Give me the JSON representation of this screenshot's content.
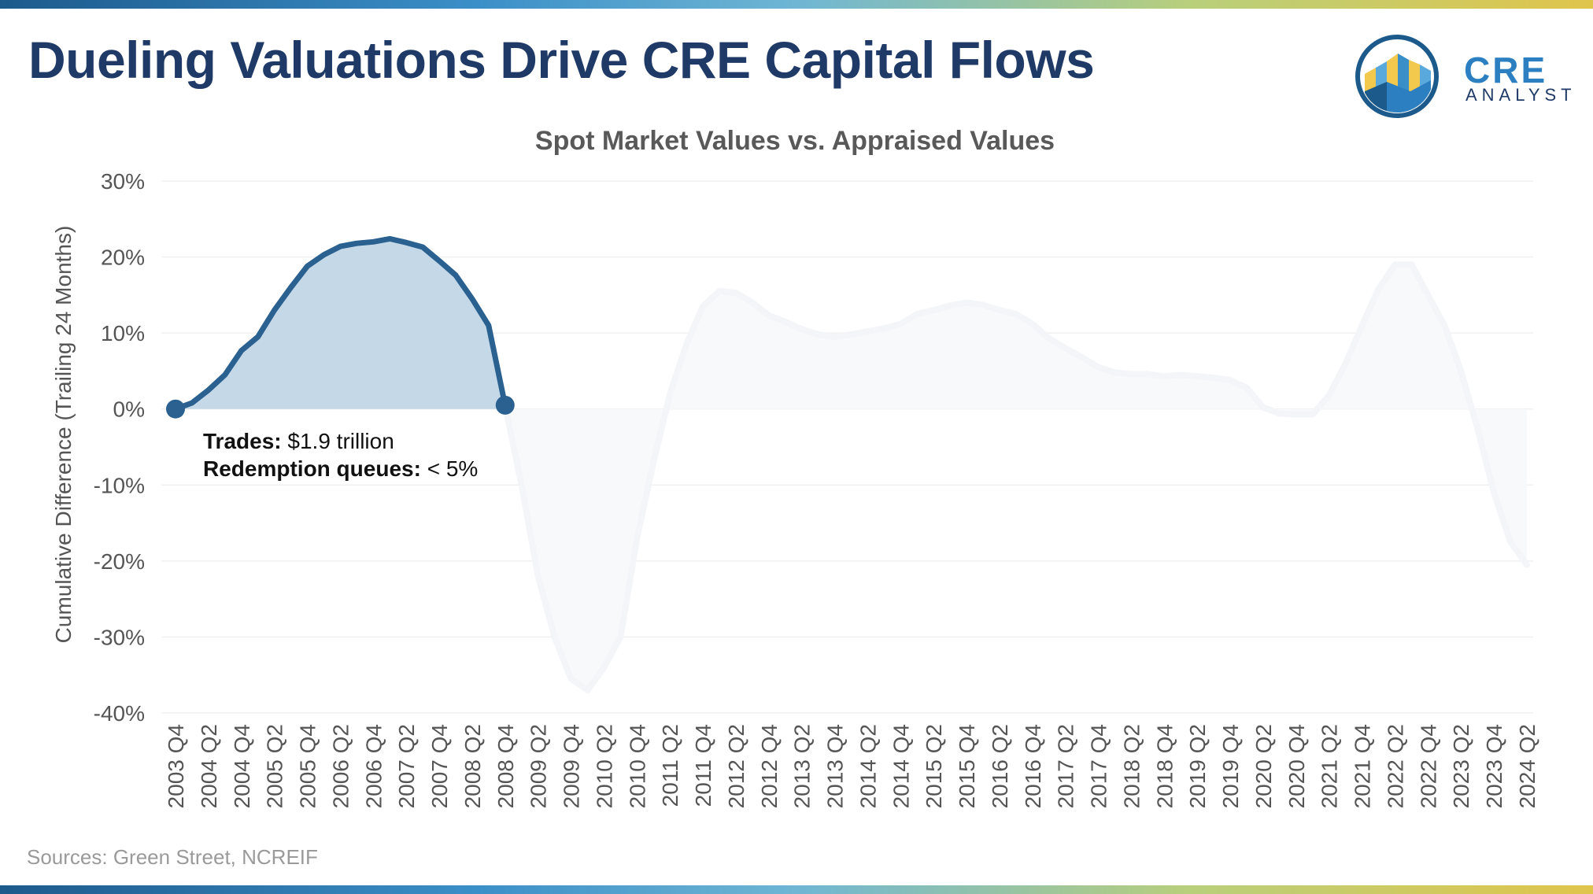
{
  "header": {
    "title": "Dueling Valuations Drive CRE Capital Flows",
    "logo_word": "CRE",
    "logo_sub": "ANALYST"
  },
  "footer": {
    "source": "Sources: Green Street, NCREIF"
  },
  "colors": {
    "title": "#203a68",
    "line_highlight": "#2b6190",
    "fill_highlight": "#c5d8e7",
    "line_faded": "#f3f5f8",
    "fill_faded": "#f7f9fb",
    "grid": "#f0f0f0",
    "axis_text": "#555555"
  },
  "chart_data": {
    "type": "line",
    "title": "Spot Market Values vs. Appraised Values",
    "xlabel": "",
    "ylabel": "Cumulative Difference (Trailing 24 Months)",
    "ylim": [
      -40,
      30
    ],
    "y_ticks": [
      30,
      20,
      10,
      0,
      -10,
      -20,
      -30,
      -40
    ],
    "y_tick_labels": [
      "30%",
      "20%",
      "10%",
      "0%",
      "-10%",
      "-20%",
      "-30%",
      "-40%"
    ],
    "x_tick_labels": [
      "2003 Q4",
      "2004 Q2",
      "2004 Q4",
      "2005 Q2",
      "2005 Q4",
      "2006 Q2",
      "2006 Q4",
      "2007 Q2",
      "2007 Q4",
      "2008 Q2",
      "2008 Q4",
      "2009 Q2",
      "2009 Q4",
      "2010 Q2",
      "2010 Q4",
      "2011 Q2",
      "2011 Q4",
      "2012 Q2",
      "2012 Q4",
      "2013 Q2",
      "2013 Q4",
      "2014 Q2",
      "2014 Q4",
      "2015 Q2",
      "2015 Q4",
      "2016 Q2",
      "2016 Q4",
      "2017 Q2",
      "2017 Q4",
      "2018 Q2",
      "2018 Q4",
      "2019 Q2",
      "2019 Q4",
      "2020 Q2",
      "2020 Q4",
      "2021 Q2",
      "2021 Q4",
      "2022 Q2",
      "2022 Q4",
      "2023 Q2",
      "2023 Q4",
      "2024 Q2"
    ],
    "x": [
      "2003 Q4",
      "2004 Q1",
      "2004 Q2",
      "2004 Q3",
      "2004 Q4",
      "2005 Q1",
      "2005 Q2",
      "2005 Q3",
      "2005 Q4",
      "2006 Q1",
      "2006 Q2",
      "2006 Q3",
      "2006 Q4",
      "2007 Q1",
      "2007 Q2",
      "2007 Q3",
      "2007 Q4",
      "2008 Q1",
      "2008 Q2",
      "2008 Q3",
      "2008 Q4",
      "2009 Q1",
      "2009 Q2",
      "2009 Q3",
      "2009 Q4",
      "2010 Q1",
      "2010 Q2",
      "2010 Q3",
      "2010 Q4",
      "2011 Q1",
      "2011 Q2",
      "2011 Q3",
      "2011 Q4",
      "2012 Q1",
      "2012 Q2",
      "2012 Q3",
      "2012 Q4",
      "2013 Q1",
      "2013 Q2",
      "2013 Q3",
      "2013 Q4",
      "2014 Q1",
      "2014 Q2",
      "2014 Q3",
      "2014 Q4",
      "2015 Q1",
      "2015 Q2",
      "2015 Q3",
      "2015 Q4",
      "2016 Q1",
      "2016 Q2",
      "2016 Q3",
      "2016 Q4",
      "2017 Q1",
      "2017 Q2",
      "2017 Q3",
      "2017 Q4",
      "2018 Q1",
      "2018 Q2",
      "2018 Q3",
      "2018 Q4",
      "2019 Q1",
      "2019 Q2",
      "2019 Q3",
      "2019 Q4",
      "2020 Q1",
      "2020 Q2",
      "2020 Q3",
      "2020 Q4",
      "2021 Q1",
      "2021 Q2",
      "2021 Q3",
      "2021 Q4",
      "2022 Q1",
      "2022 Q2",
      "2022 Q3",
      "2022 Q4",
      "2023 Q1",
      "2023 Q2",
      "2023 Q3",
      "2023 Q4",
      "2024 Q1",
      "2024 Q2"
    ],
    "values": [
      0,
      0.8,
      2.5,
      4.5,
      7.7,
      9.5,
      13.0,
      16.0,
      18.8,
      20.3,
      21.4,
      21.8,
      22.0,
      22.4,
      21.9,
      21.3,
      19.5,
      17.6,
      14.5,
      11.0,
      0.5,
      -10.0,
      -22.0,
      -30.0,
      -35.5,
      -37.0,
      -34.0,
      -30.0,
      -17.0,
      -7.0,
      2.0,
      8.5,
      13.5,
      15.5,
      15.3,
      14.0,
      12.3,
      11.5,
      10.5,
      9.8,
      9.5,
      9.8,
      10.2,
      10.6,
      11.2,
      12.5,
      13.0,
      13.6,
      14.0,
      13.7,
      13.0,
      12.5,
      11.2,
      9.3,
      8.0,
      6.8,
      5.5,
      4.8,
      4.6,
      4.6,
      4.3,
      4.5,
      4.3,
      4.1,
      3.8,
      2.8,
      0.2,
      -0.6,
      -0.7,
      -0.7,
      1.8,
      6.0,
      11.0,
      15.8,
      19.0,
      19.0,
      15.0,
      11.0,
      5.0,
      -2.5,
      -11.0,
      -17.5,
      -20.5
    ],
    "highlight_range": [
      "2003 Q4",
      "2008 Q4"
    ],
    "annotation": {
      "trades_label": "Trades:",
      "trades_value": " $1.9 trillion",
      "queues_label": "Redemption queues:",
      "queues_value": " < 5%"
    },
    "grid": true,
    "legend": "none"
  }
}
